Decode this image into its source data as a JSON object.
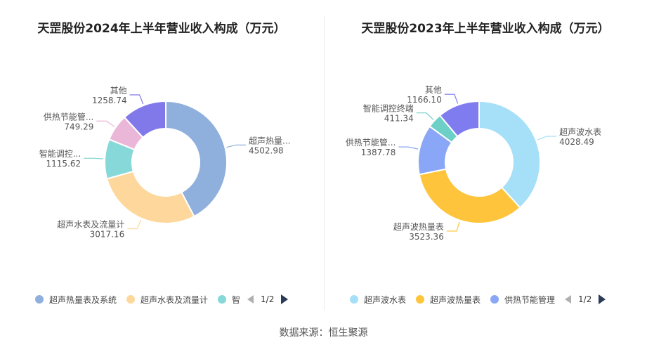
{
  "source_label": "数据来源：恒生聚源",
  "chart_data": [
    {
      "type": "pie",
      "title": "天罡股份2024年上半年营业收入构成（万元）",
      "slices": [
        {
          "name": "超声热量表及系统",
          "label": "超声热量...",
          "value": 4502.98,
          "value_text": "4502.98",
          "color": "#8fafdc"
        },
        {
          "name": "超声水表及流量计",
          "label": "超声水表及流量计",
          "value": 3017.16,
          "value_text": "3017.16",
          "color": "#fdd79b"
        },
        {
          "name": "智能调控终端",
          "label": "智能调控...",
          "value": 1115.62,
          "value_text": "1115.62",
          "color": "#86d8d9"
        },
        {
          "name": "供热节能管理",
          "label": "供热节能管...",
          "value": 749.29,
          "value_text": "749.29",
          "color": "#ebb7d9"
        },
        {
          "name": "其他",
          "label": "其他",
          "value": 1258.74,
          "value_text": "1258.74",
          "color": "#8179ea"
        }
      ],
      "legend": {
        "items": [
          {
            "label": "超声热量表及系统",
            "color": "#8fafdc"
          },
          {
            "label": "超声水表及流量计",
            "color": "#fdd79b"
          },
          {
            "label": "智",
            "color": "#86d8d9"
          }
        ],
        "page": "1/2"
      }
    },
    {
      "type": "pie",
      "title": "天罡股份2023年上半年营业收入构成（万元）",
      "slices": [
        {
          "name": "超声波水表",
          "label": "超声波水表",
          "value": 4028.49,
          "value_text": "4028.49",
          "color": "#a5dff8"
        },
        {
          "name": "超声波热量表",
          "label": "超声波热量表",
          "value": 3523.36,
          "value_text": "3523.36",
          "color": "#fec53c"
        },
        {
          "name": "供热节能管理",
          "label": "供热节能管...",
          "value": 1387.78,
          "value_text": "1387.78",
          "color": "#8aa6f7"
        },
        {
          "name": "智能调控终端",
          "label": "智能调控终端",
          "value": 411.34,
          "value_text": "411.34",
          "color": "#6dd0c7"
        },
        {
          "name": "其他",
          "label": "其他",
          "value": 1166.1,
          "value_text": "1166.10",
          "color": "#7f7cf0"
        }
      ],
      "legend": {
        "items": [
          {
            "label": "超声波水表",
            "color": "#a5dff8"
          },
          {
            "label": "超声波热量表",
            "color": "#fec53c"
          },
          {
            "label": "供热节能管理",
            "color": "#8aa6f7"
          }
        ],
        "page": "1/2"
      }
    }
  ]
}
